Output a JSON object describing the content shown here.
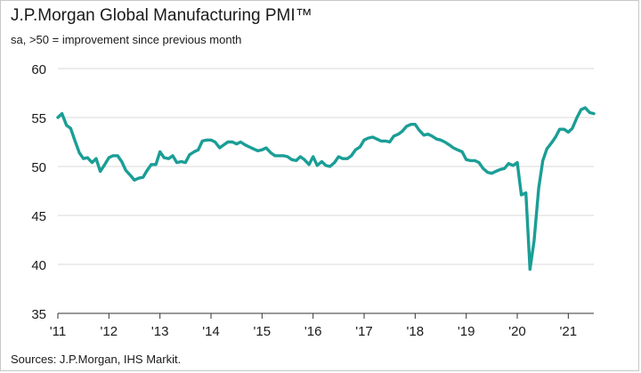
{
  "chart_data": {
    "type": "line",
    "title": "J.P.Morgan Global Manufacturing PMI™",
    "subtitle": "sa, >50 = improvement since previous month",
    "source": "Sources: J.P.Morgan, IHS Markit.",
    "xlabel": "",
    "ylabel": "",
    "ylim": [
      35,
      60
    ],
    "yticks": [
      35,
      40,
      45,
      50,
      55,
      60
    ],
    "xlim": [
      2011.0,
      2021.5
    ],
    "xticks": [
      {
        "value": 2011,
        "label": "'11"
      },
      {
        "value": 2012,
        "label": "'12"
      },
      {
        "value": 2013,
        "label": "'13"
      },
      {
        "value": 2014,
        "label": "'14"
      },
      {
        "value": 2015,
        "label": "'15"
      },
      {
        "value": 2016,
        "label": "'16"
      },
      {
        "value": 2017,
        "label": "'17"
      },
      {
        "value": 2018,
        "label": "'18"
      },
      {
        "value": 2019,
        "label": "'19"
      },
      {
        "value": 2020,
        "label": "'20"
      },
      {
        "value": 2021,
        "label": "'21"
      }
    ],
    "grid": true,
    "line_color": "#1a9e96",
    "series": [
      {
        "x": [
          2011.0,
          2011.08,
          2011.17,
          2011.25,
          2011.33,
          2011.42,
          2011.5,
          2011.58,
          2011.67,
          2011.75,
          2011.83,
          2011.92,
          2012.0,
          2012.08,
          2012.17,
          2012.25,
          2012.33,
          2012.42,
          2012.5,
          2012.58,
          2012.67,
          2012.75,
          2012.83,
          2012.92,
          2013.0,
          2013.08,
          2013.17,
          2013.25,
          2013.33,
          2013.42,
          2013.5,
          2013.58,
          2013.67,
          2013.75,
          2013.83,
          2013.92,
          2014.0,
          2014.08,
          2014.17,
          2014.25,
          2014.33,
          2014.42,
          2014.5,
          2014.58,
          2014.67,
          2014.75,
          2014.83,
          2014.92,
          2015.0,
          2015.08,
          2015.17,
          2015.25,
          2015.33,
          2015.42,
          2015.5,
          2015.58,
          2015.67,
          2015.75,
          2015.83,
          2015.92,
          2016.0,
          2016.08,
          2016.17,
          2016.25,
          2016.33,
          2016.42,
          2016.5,
          2016.58,
          2016.67,
          2016.75,
          2016.83,
          2016.92,
          2017.0,
          2017.08,
          2017.17,
          2017.25,
          2017.33,
          2017.42,
          2017.5,
          2017.58,
          2017.67,
          2017.75,
          2017.83,
          2017.92,
          2018.0,
          2018.08,
          2018.17,
          2018.25,
          2018.33,
          2018.42,
          2018.5,
          2018.58,
          2018.67,
          2018.75,
          2018.83,
          2018.92,
          2019.0,
          2019.08,
          2019.17,
          2019.25,
          2019.33,
          2019.42,
          2019.5,
          2019.58,
          2019.67,
          2019.75,
          2019.83,
          2019.92,
          2020.0,
          2020.08,
          2020.17,
          2020.25,
          2020.33,
          2020.42,
          2020.5,
          2020.58,
          2020.67,
          2020.75,
          2020.83,
          2020.92,
          2021.0,
          2021.08,
          2021.17,
          2021.25,
          2021.33,
          2021.42,
          2021.5
        ],
        "values": [
          55.0,
          55.4,
          54.2,
          53.9,
          52.7,
          51.4,
          50.8,
          50.9,
          50.4,
          50.8,
          49.5,
          50.2,
          50.9,
          51.1,
          51.1,
          50.5,
          49.6,
          49.1,
          48.6,
          48.8,
          48.9,
          49.6,
          50.2,
          50.2,
          51.5,
          50.9,
          50.8,
          51.1,
          50.4,
          50.5,
          50.4,
          51.2,
          51.5,
          51.7,
          52.6,
          52.7,
          52.7,
          52.5,
          51.9,
          52.2,
          52.5,
          52.5,
          52.3,
          52.5,
          52.2,
          52.0,
          51.8,
          51.6,
          51.7,
          51.9,
          51.4,
          51.1,
          51.1,
          51.1,
          51.0,
          50.7,
          50.6,
          51.0,
          50.7,
          50.2,
          51.0,
          50.1,
          50.5,
          50.1,
          50.0,
          50.4,
          51.0,
          50.8,
          50.8,
          51.1,
          51.7,
          52.0,
          52.7,
          52.9,
          53.0,
          52.8,
          52.6,
          52.6,
          52.5,
          53.1,
          53.3,
          53.6,
          54.1,
          54.3,
          54.3,
          53.7,
          53.2,
          53.3,
          53.1,
          52.8,
          52.7,
          52.5,
          52.2,
          51.9,
          51.7,
          51.5,
          50.7,
          50.6,
          50.6,
          50.4,
          49.8,
          49.4,
          49.3,
          49.5,
          49.7,
          49.8,
          50.3,
          50.1,
          50.4,
          47.1,
          47.3,
          39.5,
          42.4,
          47.8,
          50.6,
          51.8,
          52.4,
          53.0,
          53.8,
          53.8,
          53.5,
          53.9,
          55.0,
          55.8,
          56.0,
          55.5,
          55.4
        ]
      }
    ]
  }
}
